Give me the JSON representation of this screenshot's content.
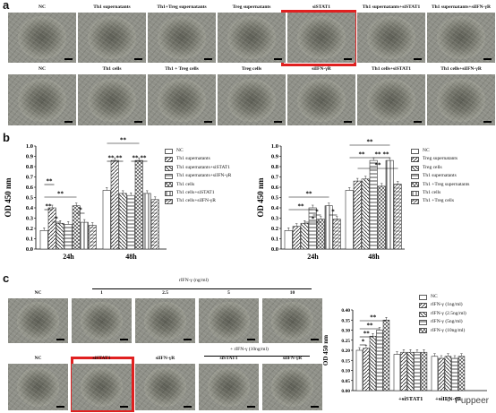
{
  "panels": {
    "a": "a",
    "b": "b",
    "c": "c"
  },
  "panel_a": {
    "row1": [
      "NC",
      "Th1 supernatants",
      "Th1+Treg supernatants",
      "Treg supernatants",
      "siSTAT1",
      "Th1 supernatants+siSTAT1",
      "Th1 supernatants+siIFN-γR"
    ],
    "row2": [
      "NC",
      "Th1 cells",
      "Th1 + Treg cells",
      "Treg cells",
      "siIFN-γR",
      "Th1 cells+siSTAT1",
      "Th1 cells+siIFN-γR"
    ]
  },
  "panel_c_micro": {
    "header": "rIFN-γ (ng/ml)",
    "row1": [
      "NC",
      "1",
      "2.5",
      "5",
      "10"
    ],
    "row2_header": "+ rIFN-γ (10ng/ml)",
    "row2": [
      "NC",
      "siSTAT1",
      "siIFN-γR",
      "siSTAT1",
      "siIFN-γR"
    ]
  },
  "legends": {
    "b_left": [
      "NC",
      "Th1 supernatants",
      "Th1 supernatants+siSTAT1",
      "Th1 supernatants+siIFN-γR",
      "Th1 cells",
      "Th1 cells+siSTAT1",
      "Th1 cells+siIFN-γR"
    ],
    "b_right": [
      "NC",
      "Treg supernatants",
      "Treg cells",
      "Th1 supernatants",
      "Th1 +Treg supernatants",
      "Th1 cells",
      "Th1 +Treg cells"
    ],
    "c": [
      "NC",
      "rIFN-γ (1ng/ml)",
      "rIFN-γ (2.5ng/ml)",
      "rIFN-γ (5ng/ml)",
      "rIFN-γ (10ng/ml)"
    ]
  },
  "watermark": "Puppeer",
  "chart_data": [
    {
      "type": "bar",
      "ylabel": "OD 450 nm",
      "ylim": [
        0,
        1.0
      ],
      "yticks": [
        0.0,
        0.1,
        0.2,
        0.3,
        0.4,
        0.5,
        0.6,
        0.7,
        0.8,
        0.9,
        1.0
      ],
      "categories": [
        "24h",
        "48h"
      ],
      "series": [
        {
          "name": "NC",
          "values": [
            0.18,
            0.57
          ]
        },
        {
          "name": "Th1 supernatants",
          "values": [
            0.4,
            0.86
          ]
        },
        {
          "name": "Th1 supernatants+siSTAT1",
          "values": [
            0.25,
            0.54
          ]
        },
        {
          "name": "Th1 supernatants+siIFN-γR",
          "values": [
            0.24,
            0.52
          ]
        },
        {
          "name": "Th1 cells",
          "values": [
            0.42,
            0.86
          ]
        },
        {
          "name": "Th1 cells+siSTAT1",
          "values": [
            0.26,
            0.54
          ]
        },
        {
          "name": "Th1 cells+siIFN-γR",
          "values": [
            0.23,
            0.48
          ]
        }
      ],
      "significance": [
        "**",
        "*",
        "**",
        "*",
        "**",
        "**",
        "**",
        "**",
        "**",
        "**"
      ]
    },
    {
      "type": "bar",
      "ylabel": "OD 450 nm",
      "ylim": [
        0,
        1.0
      ],
      "yticks": [
        0.0,
        0.1,
        0.2,
        0.3,
        0.4,
        0.5,
        0.6,
        0.7,
        0.8,
        0.9,
        1.0
      ],
      "categories": [
        "24h",
        "48h"
      ],
      "series": [
        {
          "name": "NC",
          "values": [
            0.18,
            0.57
          ]
        },
        {
          "name": "Treg supernatants",
          "values": [
            0.22,
            0.66
          ]
        },
        {
          "name": "Treg cells",
          "values": [
            0.25,
            0.68
          ]
        },
        {
          "name": "Th1 supernatants",
          "values": [
            0.4,
            0.86
          ]
        },
        {
          "name": "Th1 +Treg supernatants",
          "values": [
            0.29,
            0.61
          ]
        },
        {
          "name": "Th1 cells",
          "values": [
            0.42,
            0.86
          ]
        },
        {
          "name": "Th1 +Treg cells",
          "values": [
            0.29,
            0.63
          ]
        }
      ],
      "significance": [
        "**",
        "*",
        "*",
        "**",
        "*",
        "**",
        "**",
        "**",
        "**",
        "**"
      ]
    },
    {
      "type": "bar",
      "ylabel": "OD 450 nm",
      "ylim": [
        0,
        0.4
      ],
      "yticks": [
        0.0,
        0.05,
        0.1,
        0.15,
        0.2,
        0.25,
        0.3,
        0.35,
        0.4
      ],
      "categories": [
        "",
        "+siSTAT1",
        "+siIFN-γR"
      ],
      "series": [
        {
          "name": "NC",
          "values": [
            0.2,
            0.18,
            0.17
          ]
        },
        {
          "name": "rIFN-γ (1ng/ml)",
          "values": [
            0.21,
            0.19,
            0.16
          ]
        },
        {
          "name": "rIFN-γ (2.5ng/ml)",
          "values": [
            0.27,
            0.19,
            0.17
          ]
        },
        {
          "name": "rIFN-γ (5ng/ml)",
          "values": [
            0.3,
            0.19,
            0.16
          ]
        },
        {
          "name": "rIFN-γ (10ng/ml)",
          "values": [
            0.35,
            0.19,
            0.17
          ]
        }
      ],
      "significance": [
        "*",
        "**",
        "**",
        "**"
      ]
    }
  ]
}
